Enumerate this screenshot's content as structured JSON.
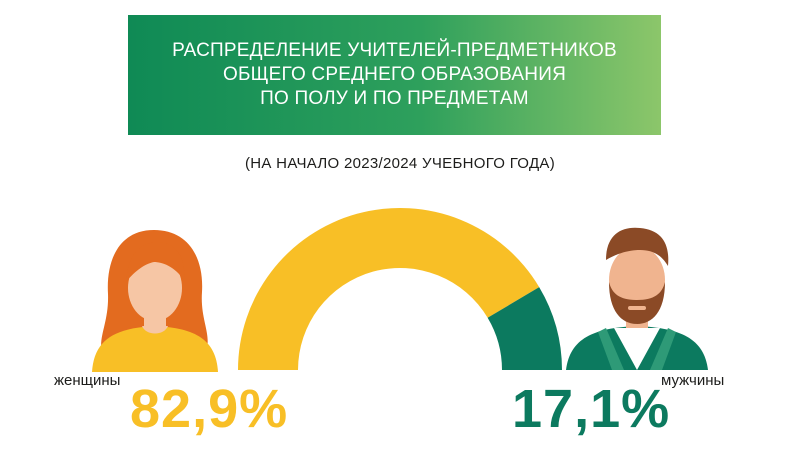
{
  "banner": {
    "line1": "РАСПРЕДЕЛЕНИЕ УЧИТЕЛЕЙ-ПРЕДМЕТНИКОВ",
    "line2": "ОБЩЕГО СРЕДНЕГО ОБРАЗОВАНИЯ",
    "line3": "ПО ПОЛУ И ПО ПРЕДМЕТАМ"
  },
  "subtitle": "(НА НАЧАЛО 2023/2024 УЧЕБНОГО ГОДА)",
  "colors": {
    "women": "#f8bf26",
    "men": "#0c7a5f",
    "banner_start": "#0f8a55",
    "banner_end": "#8cc66a",
    "hair_women": "#e36b1f",
    "hair_men": "#8b4a26"
  },
  "chart_data": {
    "type": "pie",
    "style": "half-donut",
    "categories": [
      "женщины",
      "мужчины"
    ],
    "values": [
      82.9,
      17.1
    ],
    "value_labels": [
      "82,9%",
      "17,1%"
    ],
    "unit": "%"
  },
  "icons": {
    "women": "woman-avatar-icon",
    "men": "man-avatar-icon"
  }
}
